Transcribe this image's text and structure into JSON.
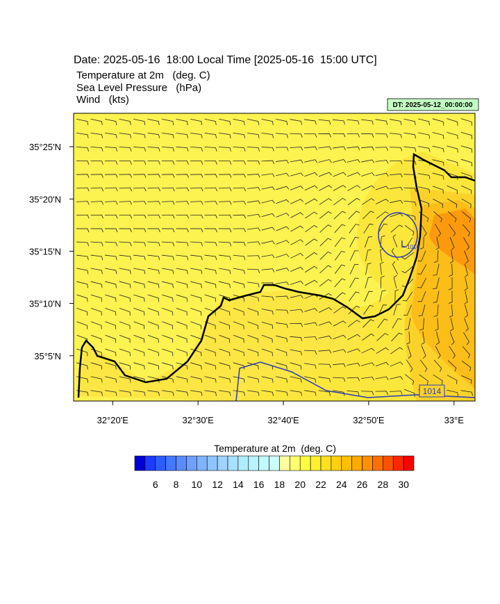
{
  "header": {
    "title": "Date: 2025-05-16  18:00 Local Time [2025-05-16  15:00 UTC]",
    "fields": [
      "Temperature at 2m   (deg. C)",
      "Sea Level Pressure   (hPa)",
      "Wind   (kts)"
    ],
    "dt_label": "DT: 2025-05-12_00:00:00"
  },
  "map": {
    "xlim": [
      32.257,
      33.041
    ],
    "ylim": [
      35.011,
      35.47
    ],
    "xticks": [
      {
        "value": 32.3333,
        "label": "32°20'E"
      },
      {
        "value": 32.5,
        "label": "32°30'E"
      },
      {
        "value": 32.6667,
        "label": "32°40'E"
      },
      {
        "value": 32.8333,
        "label": "32°50'E"
      },
      {
        "value": 33,
        "label": "33°E"
      }
    ],
    "yticks": [
      {
        "value": 35.0833,
        "label": "35°5'N"
      },
      {
        "value": 35.1667,
        "label": "35°10'N"
      },
      {
        "value": 35.25,
        "label": "35°15'N"
      },
      {
        "value": 35.3333,
        "label": "35°20'N"
      },
      {
        "value": 35.4167,
        "label": "35°25'N"
      }
    ],
    "low_label": "L",
    "contour_labels": [
      "1018",
      "1014"
    ]
  },
  "colorbar": {
    "title": "Temperature at 2m  (deg. C)",
    "range": [
      4,
      31
    ],
    "ticks": [
      6,
      8,
      10,
      12,
      14,
      16,
      18,
      20,
      22,
      24,
      26,
      28,
      30
    ],
    "colors": [
      "#0000d8",
      "#1c3cff",
      "#2e5cff",
      "#4478ff",
      "#5a8cff",
      "#70a0ff",
      "#80b4ff",
      "#90c4ff",
      "#a0d4ff",
      "#a8e0ff",
      "#b0ecff",
      "#b8f4ff",
      "#c0faff",
      "#ccffff",
      "#ffffa0",
      "#ffff70",
      "#ffff40",
      "#fff030",
      "#ffe020",
      "#ffd010",
      "#ffc000",
      "#ffaa00",
      "#ff9000",
      "#ff7000",
      "#ff5000",
      "#ff2800",
      "#ff0000"
    ]
  }
}
